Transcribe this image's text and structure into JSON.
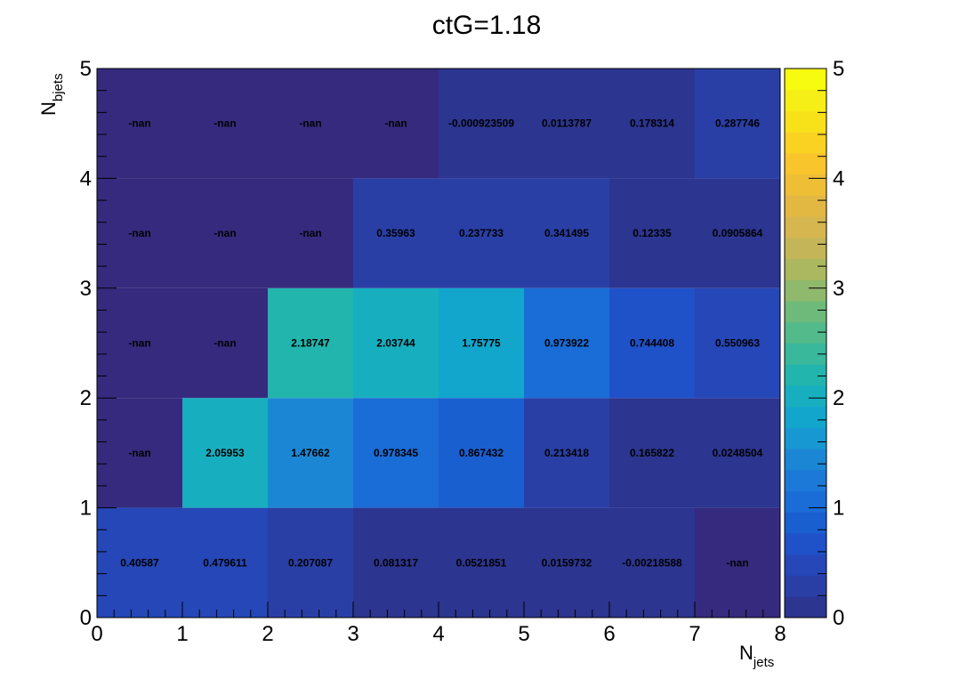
{
  "chart_data": {
    "type": "heatmap",
    "title": "ctG=1.18",
    "xlabel": {
      "main": "N",
      "sub": "jets"
    },
    "ylabel": {
      "main": "N",
      "sub": "bjets"
    },
    "xlim": [
      0,
      8
    ],
    "ylim": [
      0,
      5
    ],
    "zlim": [
      0,
      5
    ],
    "x_ticks": [
      "0",
      "1",
      "2",
      "3",
      "4",
      "5",
      "6",
      "7",
      "8"
    ],
    "y_ticks": [
      "0",
      "1",
      "2",
      "3",
      "4",
      "5"
    ],
    "z_ticks": [
      "0",
      "1",
      "2",
      "3",
      "4",
      "5"
    ],
    "x_bins": [
      [
        0,
        1
      ],
      [
        1,
        2
      ],
      [
        2,
        3
      ],
      [
        3,
        4
      ],
      [
        4,
        5
      ],
      [
        5,
        6
      ],
      [
        6,
        7
      ],
      [
        7,
        8
      ]
    ],
    "y_bins": [
      [
        0,
        1
      ],
      [
        1,
        2
      ],
      [
        2,
        3
      ],
      [
        3,
        4
      ],
      [
        4,
        5
      ]
    ],
    "labels": [
      [
        "0.40587",
        "0.479611",
        "0.207087",
        "0.081317",
        "0.0521851",
        "0.0159732",
        "-0.00218588",
        "-nan"
      ],
      [
        "-nan",
        "2.05953",
        "1.47662",
        "0.978345",
        "0.867432",
        "0.213418",
        "0.165822",
        "0.0248504"
      ],
      [
        "-nan",
        "-nan",
        "2.18747",
        "2.03744",
        "1.75775",
        "0.973922",
        "0.744408",
        "0.550963"
      ],
      [
        "-nan",
        "-nan",
        "-nan",
        "0.35963",
        "0.237733",
        "0.341495",
        "0.12335",
        "0.0905864"
      ],
      [
        "-nan",
        "-nan",
        "-nan",
        "-nan",
        "-0.000923509",
        "0.0113787",
        "0.178314",
        "0.287746"
      ]
    ],
    "values": [
      [
        0.40587,
        0.479611,
        0.207087,
        0.081317,
        0.0521851,
        0.0159732,
        -0.00218588,
        null
      ],
      [
        null,
        2.05953,
        1.47662,
        0.978345,
        0.867432,
        0.213418,
        0.165822,
        0.0248504
      ],
      [
        null,
        null,
        2.18747,
        2.03744,
        1.75775,
        0.973922,
        0.744408,
        0.550963
      ],
      [
        null,
        null,
        null,
        0.35963,
        0.237733,
        0.341495,
        0.12335,
        0.0905864
      ],
      [
        null,
        null,
        null,
        null,
        -0.000923509,
        0.0113787,
        0.178314,
        0.287746
      ]
    ],
    "palette": [
      "#2c3590",
      "#2a3fa6",
      "#2547b8",
      "#1f51c8",
      "#1a5fd0",
      "#1a6cd6",
      "#1c79d8",
      "#1b87d4",
      "#1798d2",
      "#12a6cc",
      "#17afbf",
      "#22b5ad",
      "#3ab89c",
      "#52ba8b",
      "#6eba7a",
      "#8fb96c",
      "#abb85f",
      "#c3b558",
      "#d5b64f",
      "#e2b843",
      "#eebe37",
      "#f8c52c",
      "#f9d222",
      "#f7e21a",
      "#f5ee17",
      "#f7fb0f"
    ],
    "empty_color": "#362a7e",
    "frame_color": "#000000"
  }
}
